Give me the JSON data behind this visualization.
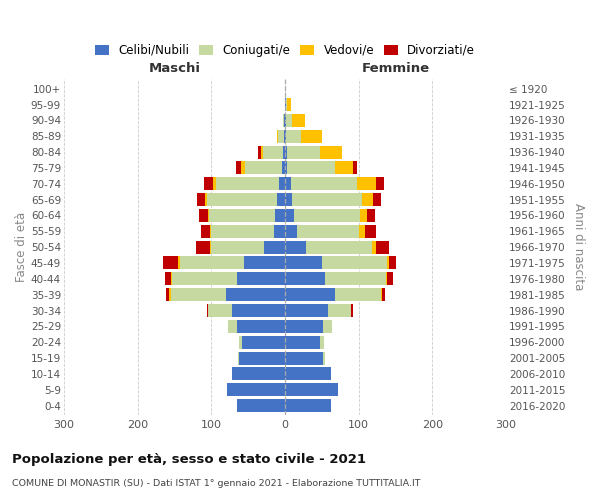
{
  "age_groups": [
    "100+",
    "95-99",
    "90-94",
    "85-89",
    "80-84",
    "75-79",
    "70-74",
    "65-69",
    "60-64",
    "55-59",
    "50-54",
    "45-49",
    "40-44",
    "35-39",
    "30-34",
    "25-29",
    "20-24",
    "15-19",
    "10-14",
    "5-9",
    "0-4"
  ],
  "birth_years": [
    "≤ 1920",
    "1921-1925",
    "1926-1930",
    "1931-1935",
    "1936-1940",
    "1941-1945",
    "1946-1950",
    "1951-1955",
    "1956-1960",
    "1961-1965",
    "1966-1970",
    "1971-1975",
    "1976-1980",
    "1981-1985",
    "1986-1990",
    "1991-1995",
    "1996-2000",
    "2001-2005",
    "2006-2010",
    "2011-2015",
    "2016-2020"
  ],
  "males_celibi": [
    0,
    0,
    1,
    1,
    2,
    4,
    8,
    11,
    13,
    15,
    28,
    55,
    65,
    80,
    72,
    65,
    58,
    62,
    72,
    78,
    65
  ],
  "males_coniugati": [
    0,
    0,
    2,
    8,
    28,
    50,
    85,
    95,
    90,
    85,
    72,
    88,
    88,
    75,
    32,
    12,
    4,
    2,
    0,
    0,
    0
  ],
  "males_vedovi": [
    0,
    0,
    0,
    2,
    2,
    5,
    5,
    3,
    2,
    2,
    2,
    2,
    2,
    2,
    0,
    0,
    0,
    0,
    0,
    0,
    0
  ],
  "males_divorziati": [
    0,
    0,
    0,
    0,
    5,
    8,
    12,
    10,
    12,
    12,
    18,
    20,
    8,
    4,
    2,
    0,
    0,
    0,
    0,
    0,
    0
  ],
  "females_nubili": [
    0,
    1,
    1,
    2,
    3,
    3,
    8,
    10,
    12,
    16,
    28,
    50,
    55,
    68,
    58,
    52,
    48,
    52,
    62,
    72,
    62
  ],
  "females_coniugate": [
    0,
    2,
    8,
    20,
    45,
    65,
    90,
    95,
    90,
    85,
    90,
    88,
    82,
    62,
    32,
    12,
    5,
    2,
    0,
    0,
    0
  ],
  "females_vedove": [
    0,
    5,
    18,
    28,
    30,
    25,
    25,
    15,
    10,
    8,
    5,
    3,
    2,
    2,
    0,
    0,
    0,
    0,
    0,
    0,
    0
  ],
  "females_divorziate": [
    0,
    0,
    0,
    0,
    0,
    5,
    12,
    10,
    10,
    15,
    18,
    10,
    8,
    4,
    2,
    0,
    0,
    0,
    0,
    0,
    0
  ],
  "color_celibi": "#4472c4",
  "color_coniugati": "#c5d9a0",
  "color_vedovi": "#ffc000",
  "color_divorziati": "#c00000",
  "xlim": 300,
  "title": "Popolazione per età, sesso e stato civile - 2021",
  "subtitle": "COMUNE DI MONASTIR (SU) - Dati ISTAT 1° gennaio 2021 - Elaborazione TUTTITALIA.IT",
  "ylabel_left": "Fasce di età",
  "ylabel_right": "Anni di nascita",
  "label_maschi": "Maschi",
  "label_femmine": "Femmine",
  "legend_labels": [
    "Celibi/Nubili",
    "Coniugati/e",
    "Vedovi/e",
    "Divorziati/e"
  ]
}
